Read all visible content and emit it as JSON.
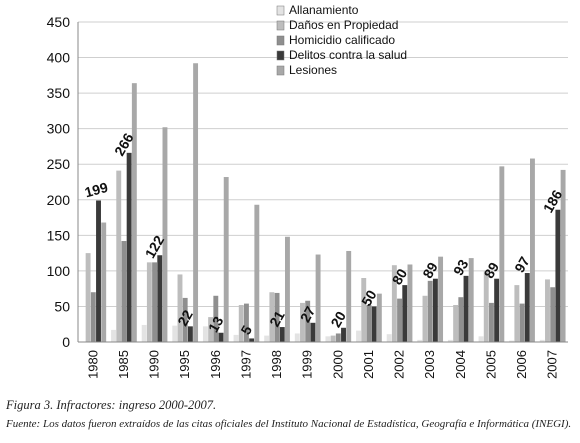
{
  "chart_data": {
    "type": "bar",
    "categories": [
      "1980",
      "1985",
      "1990",
      "1995",
      "1996",
      "1997",
      "1998",
      "1999",
      "2000",
      "2001",
      "2002",
      "2003",
      "2004",
      "2005",
      "2006",
      "2007"
    ],
    "ylim": [
      0,
      450
    ],
    "yticks": [
      0,
      50,
      100,
      150,
      200,
      250,
      300,
      350,
      400,
      450
    ],
    "legend_position": "top",
    "series": [
      {
        "name": "Allanamiento",
        "color": "#e3e3e3",
        "values": [
          0,
          17,
          24,
          23,
          22,
          10,
          9,
          12,
          8,
          16,
          11,
          3,
          3,
          8,
          2,
          3
        ]
      },
      {
        "name": "Daños en Propiedad",
        "color": "#bdbdbd",
        "values": [
          125,
          241,
          112,
          95,
          35,
          52,
          70,
          55,
          9,
          90,
          108,
          65,
          52,
          100,
          80,
          88
        ]
      },
      {
        "name": "Homicidio calificado",
        "color": "#8f8f8f",
        "values": [
          70,
          142,
          112,
          62,
          65,
          54,
          69,
          58,
          12,
          52,
          61,
          86,
          63,
          55,
          54,
          77
        ]
      },
      {
        "name": "Delitos contra la salud",
        "color": "#3a3a3a",
        "values": [
          199,
          266,
          122,
          22,
          13,
          5,
          21,
          27,
          20,
          50,
          80,
          89,
          93,
          89,
          97,
          186
        ]
      },
      {
        "name": "Lesiones",
        "color": "#a8a8a8",
        "values": [
          168,
          364,
          302,
          392,
          232,
          193,
          148,
          123,
          128,
          68,
          109,
          120,
          118,
          247,
          258,
          242
        ]
      }
    ],
    "labels": [
      "199",
      "266",
      "122",
      "22",
      "13",
      "5",
      "21",
      "27",
      "20",
      "50",
      "80",
      "89",
      "93",
      "89",
      "97",
      "186"
    ]
  },
  "captions": {
    "figure": "Figura 3. Infractores: ingreso 2000-2007.",
    "source": "Fuente: Los datos fueron extraídos de las citas oficiales del Instituto Nacional de Estadística, Geografía e Informática (INEGI)."
  }
}
